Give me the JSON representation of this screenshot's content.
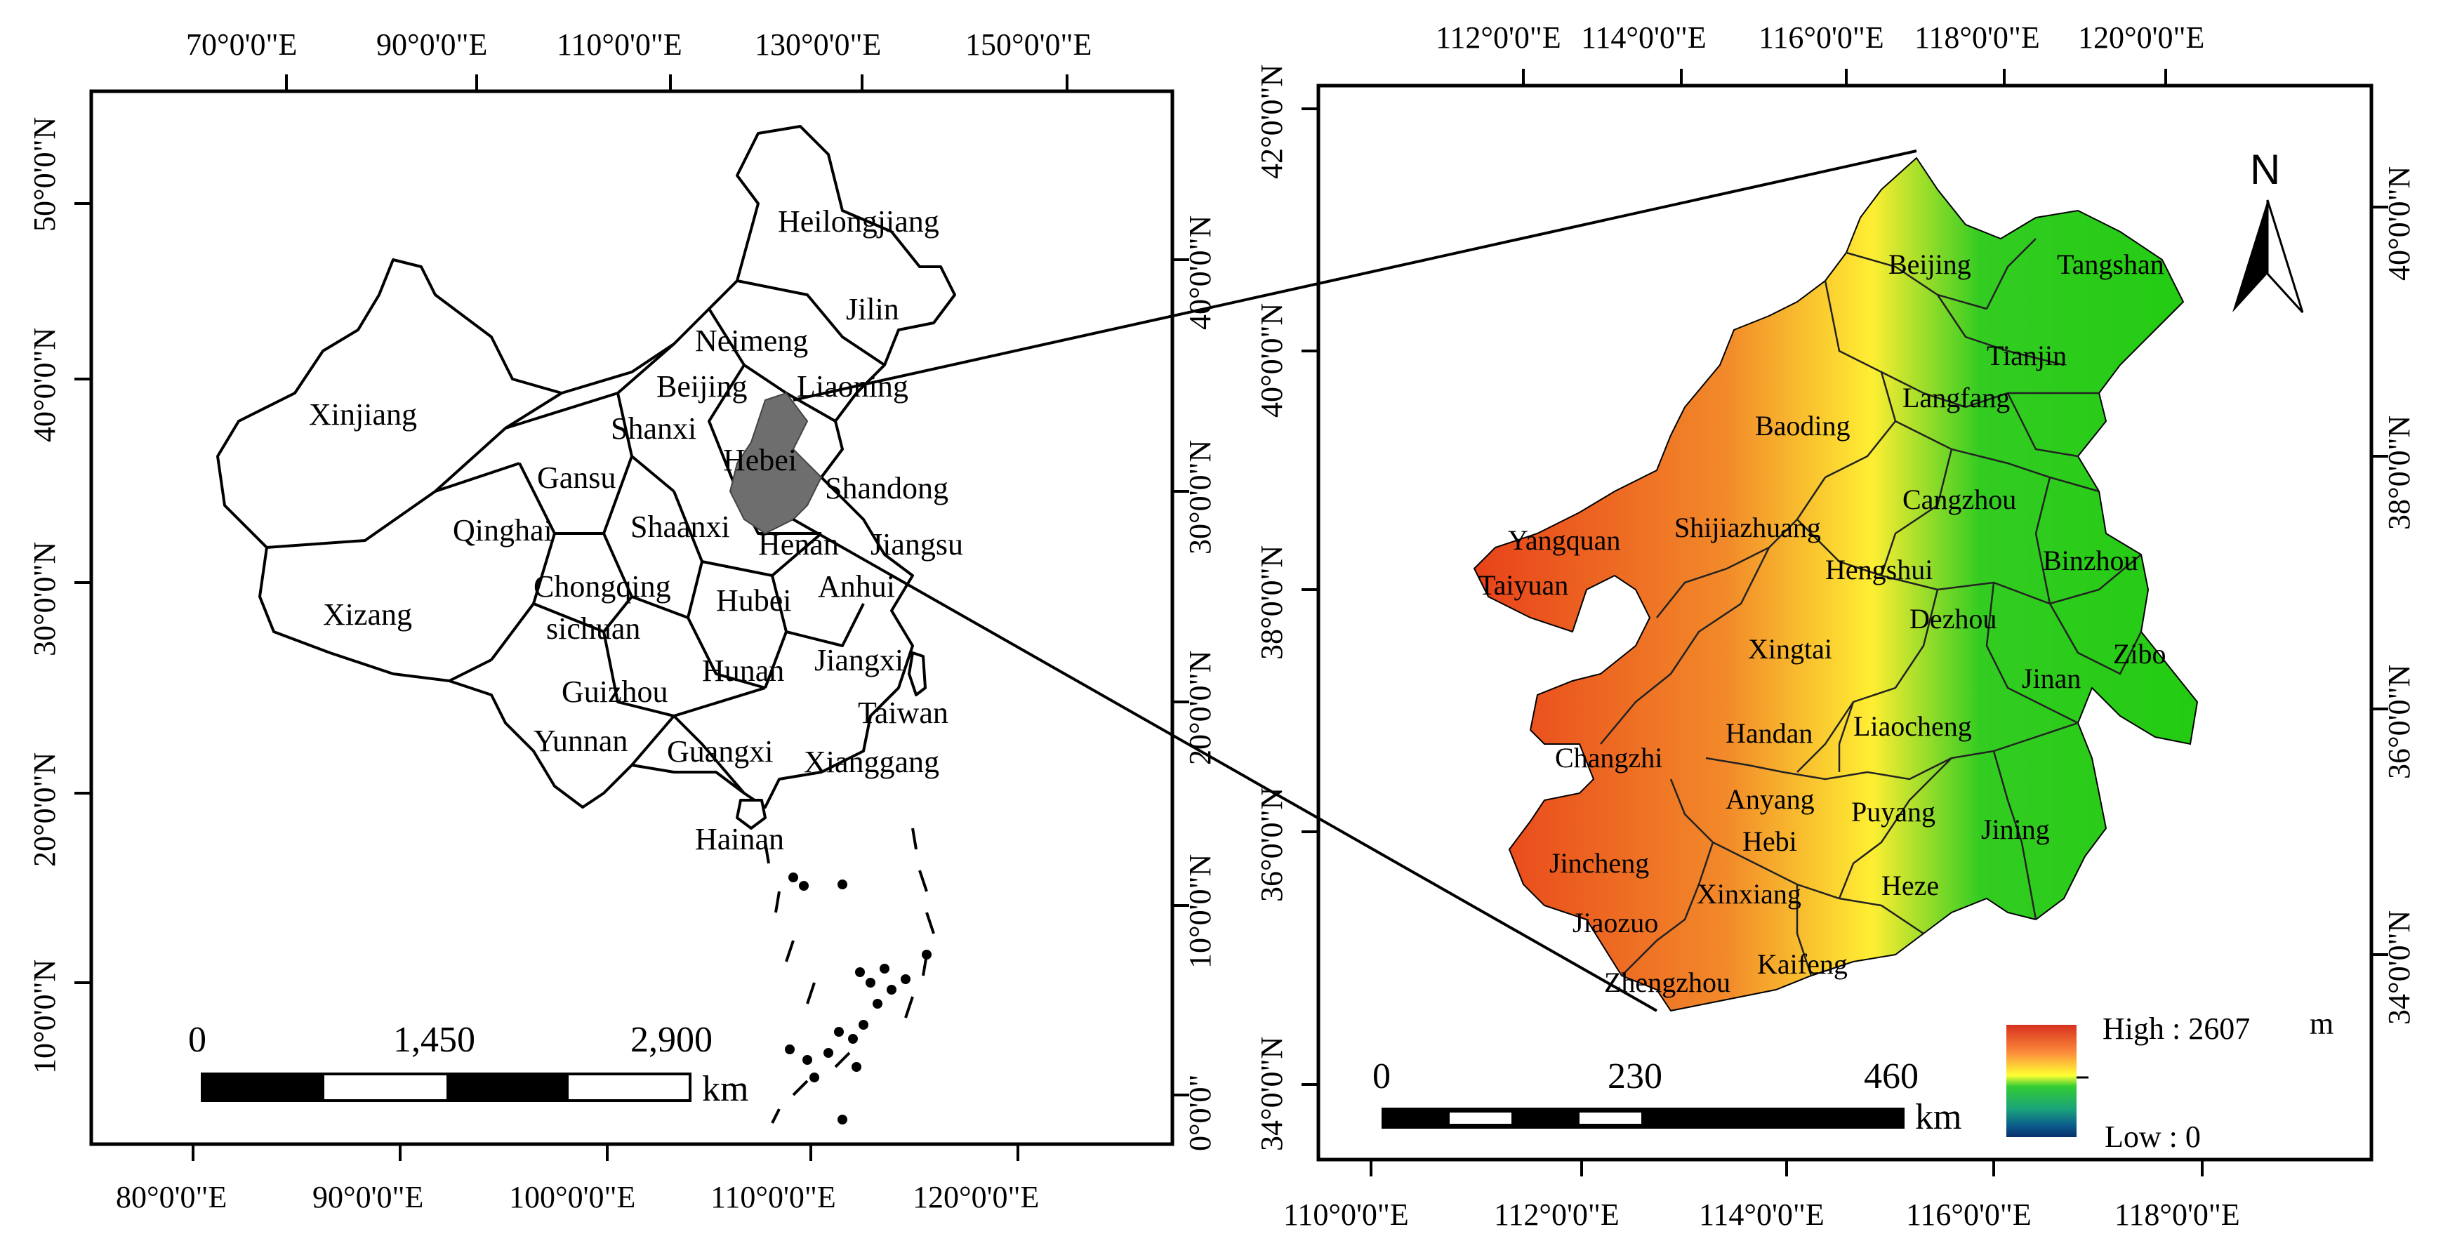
{
  "left_map": {
    "top_ticks": [
      "70°0'0\"E",
      "90°0'0\"E",
      "110°0'0\"E",
      "130°0'0\"E",
      "150°0'0\"E"
    ],
    "bottom_ticks": [
      "80°0'0\"E",
      "90°0'0\"E",
      "100°0'0\"E",
      "110°0'0\"E",
      "120°0'0\"E"
    ],
    "left_ticks": [
      "50°0'0\"N",
      "40°0'0\"N",
      "30°0'0\"N",
      "20°0'0\"N",
      "10°0'0\"N"
    ],
    "right_ticks": [
      "40°0'0\"N",
      "30°0'0\"N",
      "20°0'0\"N",
      "10°0'0\"N",
      "0°0'0\""
    ],
    "provinces": [
      "Heilongjiang",
      "Jilin",
      "Neimeng",
      "Liaoning",
      "Beijing",
      "Xinjiang",
      "Shanxi",
      "Hebei",
      "Gansu",
      "Shandong",
      "Qinghai",
      "Shaanxi",
      "Henan",
      "Jiangsu",
      "Chongqing",
      "Hubei",
      "Anhui",
      "Xizang",
      "sichuan",
      "Hunan",
      "Jiangxi",
      "Guizhou",
      "Taiwan",
      "Yunnan",
      "Guangxi",
      "Xianggang",
      "Hainan"
    ],
    "scalebar": {
      "labels": [
        "0",
        "1,450",
        "2,900"
      ],
      "unit": "km"
    }
  },
  "right_map": {
    "top_ticks": [
      "112°0'0\"E",
      "114°0'0\"E",
      "116°0'0\"E",
      "118°0'0\"E",
      "120°0'0\"E"
    ],
    "bottom_ticks": [
      "110°0'0\"E",
      "112°0'0\"E",
      "114°0'0\"E",
      "116°0'0\"E",
      "118°0'0\"E"
    ],
    "left_ticks": [
      "42°0'0\"N",
      "40°0'0\"N",
      "38°0'0\"N",
      "36°0'0\"N",
      "34°0'0\"N"
    ],
    "right_ticks": [
      "40°0'0\"N",
      "38°0'0\"N",
      "36°0'0\"N",
      "34°0'0\"N"
    ],
    "cities": [
      "Beijing",
      "Tangshan",
      "Tianjin",
      "Langfang",
      "Baoding",
      "Cangzhou",
      "Yangquan",
      "Shijiazhuang",
      "Hengshui",
      "Binzhou",
      "Taiyuan",
      "Xingtai",
      "Dezhou",
      "Zibo",
      "Jinan",
      "Handan",
      "Liaocheng",
      "Changzhi",
      "Anyang",
      "Puyang",
      "Jining",
      "Hebi",
      "Jincheng",
      "Xinxiang",
      "Heze",
      "Jiaozuo",
      "Kaifeng",
      "Zhengzhou"
    ],
    "north_label": "N",
    "legend": {
      "high": "High : 2607",
      "unit": "m",
      "low": "Low : 0",
      "colors": [
        "#d7301f",
        "#fc8d3c",
        "#ffff33",
        "#33cc33",
        "#1aa37a",
        "#0c5a8c",
        "#08306b"
      ]
    },
    "scalebar": {
      "labels": [
        "0",
        "230",
        "460"
      ],
      "unit": "km"
    }
  }
}
